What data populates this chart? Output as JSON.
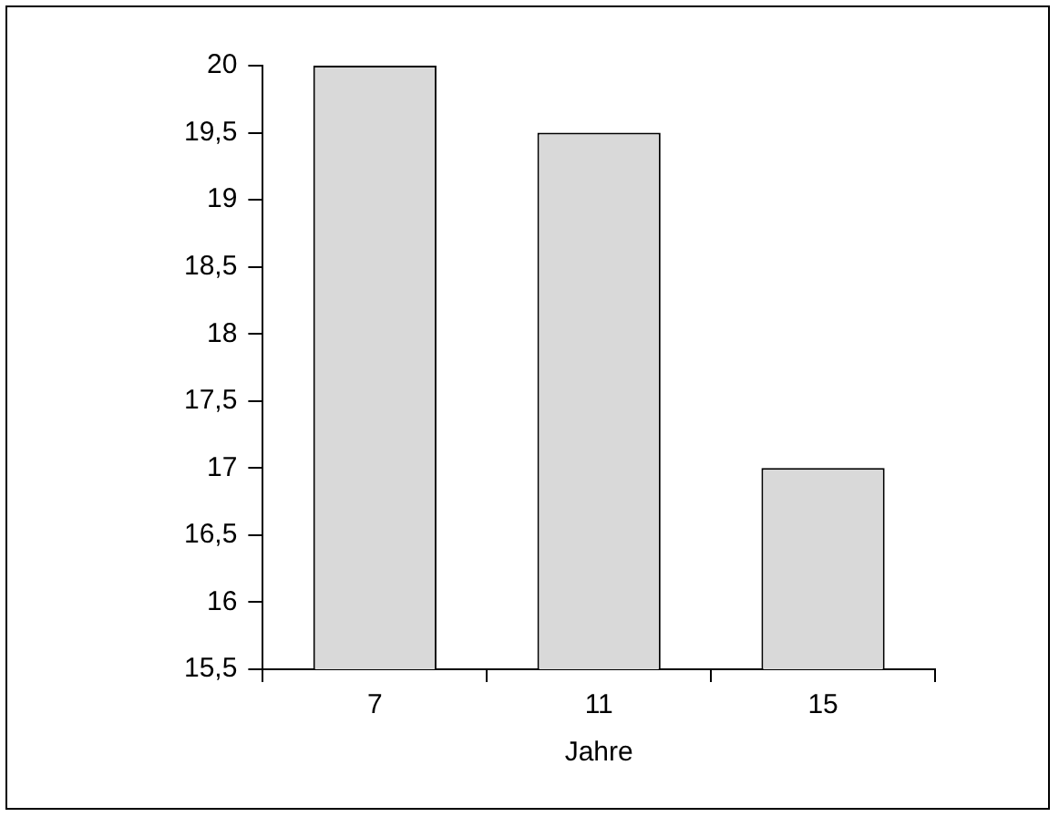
{
  "chart_data": {
    "type": "bar",
    "xlabel": "Jahre",
    "categories": [
      "7",
      "11",
      "15"
    ],
    "values": [
      20,
      19.5,
      17
    ],
    "color": "#d9d9d9",
    "ylim": [
      15.5,
      20
    ],
    "yticks": [
      {
        "value": 15.5,
        "label": "15,5"
      },
      16,
      {
        "value": 16.5,
        "label": "16,5"
      },
      17,
      {
        "value": 17.5,
        "label": "17,5"
      },
      18,
      {
        "value": 18.5,
        "label": "18,5"
      },
      19,
      {
        "value": 19.5,
        "label": "19,5"
      },
      20
    ],
    "grid": false,
    "legend": false
  }
}
